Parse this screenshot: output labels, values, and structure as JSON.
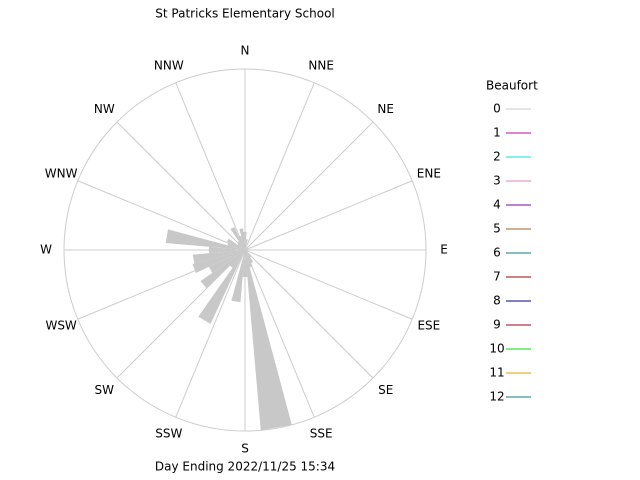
{
  "chart_data": {
    "type": "windrose",
    "title": "St Patricks Elementary School",
    "footer": "Day Ending 2022/11/25 15:34",
    "compass_labels": [
      "N",
      "NNE",
      "NE",
      "ENE",
      "E",
      "ESE",
      "SE",
      "SSE",
      "S",
      "SSW",
      "SW",
      "WSW",
      "W",
      "WNW",
      "NW",
      "NNW"
    ],
    "x": [
      0,
      10,
      20,
      30,
      40,
      50,
      60,
      70,
      80,
      90,
      100,
      110,
      120,
      130,
      140,
      150,
      160,
      170,
      180,
      190,
      200,
      210,
      220,
      230,
      240,
      250,
      260,
      270,
      280,
      290,
      300,
      310,
      320,
      330,
      340,
      350
    ],
    "series": [
      {
        "name": "0",
        "color": "#c8c8c8",
        "values": [
          10,
          6,
          0,
          0,
          0,
          0,
          0,
          0,
          0,
          0,
          0,
          0,
          0,
          0,
          5,
          8,
          10,
          100,
          15,
          29,
          0,
          45,
          12,
          30,
          22,
          30,
          29,
          20,
          44,
          10,
          11,
          5,
          6,
          14,
          8,
          12
        ]
      }
    ],
    "rlim": [
      0,
      100
    ],
    "legend": {
      "title": "Beaufort",
      "entries": [
        {
          "label": "0",
          "color": "#c8c8c8"
        },
        {
          "label": "1",
          "color": "#c000c0"
        },
        {
          "label": "2",
          "color": "#00e0e0"
        },
        {
          "label": "3",
          "color": "#e080c0"
        },
        {
          "label": "4",
          "color": "#8000a0"
        },
        {
          "label": "5",
          "color": "#a06020"
        },
        {
          "label": "6",
          "color": "#008080"
        },
        {
          "label": "7",
          "color": "#a00000"
        },
        {
          "label": "8",
          "color": "#000080"
        },
        {
          "label": "9",
          "color": "#a00020"
        },
        {
          "label": "10",
          "color": "#00e000"
        },
        {
          "label": "11",
          "color": "#e0a000"
        },
        {
          "label": "12",
          "color": "#008080"
        }
      ]
    }
  }
}
